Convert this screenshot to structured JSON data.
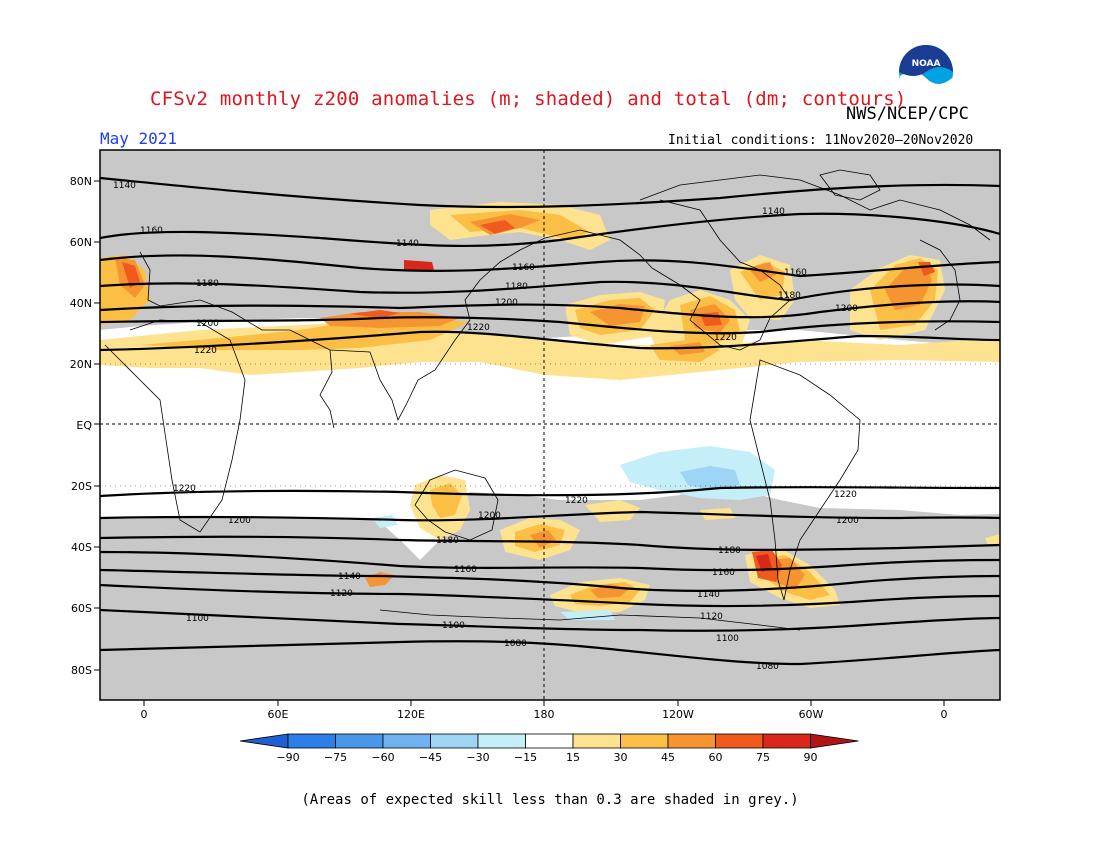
{
  "header": {
    "title": "CFSv2 monthly z200 anomalies (m; shaded) and total (dm; contours)",
    "credit": "NWS/NCEP/CPC",
    "month": "May 2021",
    "initial_conditions": "Initial conditions: 11Nov2020–20Nov2020",
    "logo_text": "NOAA"
  },
  "map": {
    "lat_labels": [
      "80N",
      "60N",
      "40N",
      "20N",
      "EQ",
      "20S",
      "40S",
      "60S",
      "80S"
    ],
    "lon_labels": [
      "0",
      "60E",
      "120E",
      "180",
      "120W",
      "60W",
      "0"
    ],
    "contour_labels": [
      "1140",
      "1160",
      "1180",
      "1200",
      "1220",
      "1140",
      "1160",
      "1180",
      "1200",
      "1220",
      "1140",
      "1160",
      "1180",
      "1200",
      "1220",
      "1220",
      "1200",
      "1180",
      "1160",
      "1140",
      "1120",
      "1100",
      "1080",
      "1220",
      "1200",
      "1180",
      "1160",
      "1140",
      "1120",
      "1100",
      "1080",
      "1220",
      "1200"
    ]
  },
  "colorbar": {
    "ticks": [
      "−90",
      "−75",
      "−60",
      "−45",
      "−30",
      "−15",
      "15",
      "30",
      "45",
      "60",
      "75",
      "90"
    ],
    "colors": [
      "#1f5fd6",
      "#2d7ee6",
      "#4a97ea",
      "#6fb2ef",
      "#9ed4f4",
      "#c4eef8",
      "#ffffff",
      "#fde38f",
      "#fbbf46",
      "#f79432",
      "#f05a1e",
      "#d8281c",
      "#b01414"
    ]
  },
  "footnote": "(Areas of expected skill less than 0.3 are shaded in grey.)",
  "colors": {
    "skill_grey": "#c8c8c8",
    "title_red": "#e0141e",
    "month_blue": "#1e3cff"
  }
}
